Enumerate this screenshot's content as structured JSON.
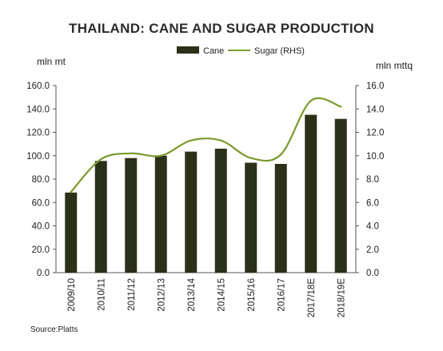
{
  "chart_data": {
    "type": "bar",
    "title": "THAILAND: CANE AND SUGAR PRODUCTION",
    "y_left_label": "mln mt",
    "y_right_label": "mln mttq",
    "categories": [
      "2009/10",
      "2010/11",
      "2011/12",
      "2012/13",
      "2013/14",
      "2014/15",
      "2015/16",
      "2016/17",
      "2017/18E",
      "2018/19E"
    ],
    "series": [
      {
        "name": "Cane",
        "type": "bar",
        "axis": "left",
        "color": "#2b3018",
        "values": [
          68.5,
          95.5,
          98.0,
          100.0,
          103.5,
          106.0,
          94.0,
          93.0,
          135.0,
          131.5
        ]
      },
      {
        "name": "Sugar (RHS)",
        "type": "line",
        "axis": "right",
        "color": "#7c9a2e",
        "values": [
          6.9,
          9.7,
          10.2,
          10.0,
          11.3,
          11.3,
          9.8,
          10.1,
          14.7,
          14.2
        ]
      }
    ],
    "y_left": {
      "min": 0,
      "max": 160,
      "ticks": [
        "0.0",
        "20.0",
        "40.0",
        "60.0",
        "80.0",
        "100.0",
        "120.0",
        "140.0",
        "160.0"
      ]
    },
    "y_right": {
      "min": 0,
      "max": 16,
      "ticks": [
        "0.0",
        "2.0",
        "4.0",
        "6.0",
        "8.0",
        "10.0",
        "12.0",
        "14.0",
        "16.0"
      ]
    },
    "legend_position": "top",
    "grid": false
  },
  "source": "Source:Platts"
}
